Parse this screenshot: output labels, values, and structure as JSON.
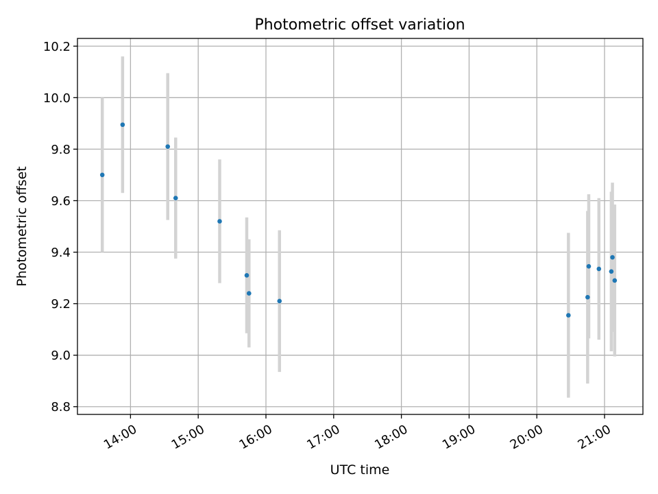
{
  "chart_data": {
    "type": "scatter",
    "title": "Photometric offset variation",
    "xlabel": "UTC time",
    "ylabel": "Photometric offset",
    "x_ticks": [
      "14:00",
      "15:00",
      "16:00",
      "17:00",
      "18:00",
      "19:00",
      "20:00",
      "21:00"
    ],
    "y_ticks": [
      "8.8",
      "9.0",
      "9.2",
      "9.4",
      "9.6",
      "9.8",
      "10.0",
      "10.2"
    ],
    "xlim": [
      "13:13",
      "21:34"
    ],
    "ylim": [
      8.77,
      10.23
    ],
    "grid": true,
    "colors": {
      "point": "#1f77b4",
      "errorbar": "#d3d3d3",
      "grid": "#b0b0b0",
      "axes": "#000000"
    },
    "points": [
      {
        "x": "13:35",
        "y": 9.7,
        "yerr": 0.3
      },
      {
        "x": "13:53",
        "y": 9.895,
        "yerr": 0.265
      },
      {
        "x": "14:33",
        "y": 9.81,
        "yerr": 0.285
      },
      {
        "x": "14:40",
        "y": 9.61,
        "yerr": 0.235
      },
      {
        "x": "15:19",
        "y": 9.52,
        "yerr": 0.24
      },
      {
        "x": "15:43",
        "y": 9.31,
        "yerr": 0.225
      },
      {
        "x": "15:45",
        "y": 9.24,
        "yerr": 0.21
      },
      {
        "x": "16:12",
        "y": 9.21,
        "yerr": 0.275
      },
      {
        "x": "20:28",
        "y": 9.155,
        "yerr": 0.32
      },
      {
        "x": "20:45",
        "y": 9.225,
        "yerr": 0.335
      },
      {
        "x": "20:46",
        "y": 9.345,
        "yerr": 0.28
      },
      {
        "x": "20:55",
        "y": 9.335,
        "yerr": 0.275
      },
      {
        "x": "21:06",
        "y": 9.325,
        "yerr": 0.31
      },
      {
        "x": "21:07",
        "y": 9.38,
        "yerr": 0.29
      },
      {
        "x": "21:09",
        "y": 9.29,
        "yerr": 0.295
      }
    ]
  }
}
